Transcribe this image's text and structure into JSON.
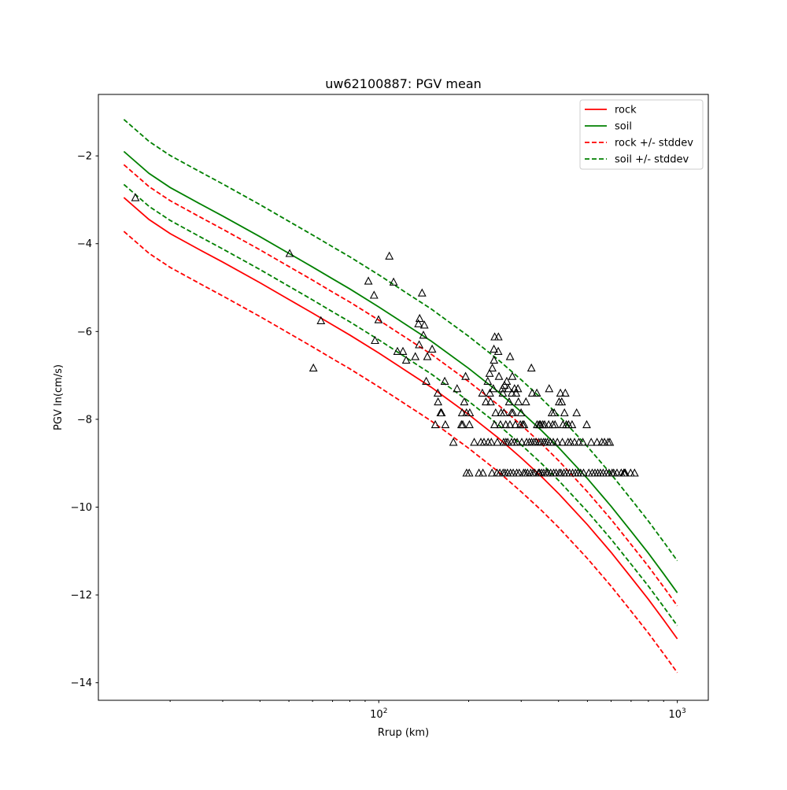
{
  "chart_data": {
    "type": "scatter",
    "title": "uw62100887: PGV mean",
    "xlabel": "Rrup (km)",
    "ylabel": "PGV ln(cm/s)",
    "xscale": "log",
    "xlim": [
      11.5,
      1270
    ],
    "ylim": [
      -14.4,
      -0.6
    ],
    "x_major_ticks": [
      {
        "value": 100,
        "base": "10",
        "exp": "2"
      },
      {
        "value": 1000,
        "base": "10",
        "exp": "3"
      }
    ],
    "y_ticks": [
      -2,
      -4,
      -6,
      -8,
      -10,
      -12,
      -14
    ],
    "y_tick_labels": [
      "−2",
      "−4",
      "−6",
      "−8",
      "−10",
      "−12",
      "−14"
    ],
    "grid": false,
    "legend_position": "top-right",
    "series": [
      {
        "name": "rock",
        "color": "#ff0000",
        "dash": "solid",
        "x": [
          14,
          17,
          20,
          25,
          30,
          40,
          50,
          60,
          70,
          80,
          100,
          120,
          150,
          200,
          250,
          300,
          350,
          400,
          500,
          600,
          700,
          800,
          900,
          1000
        ],
        "y": [
          -2.95,
          -3.45,
          -3.77,
          -4.13,
          -4.42,
          -4.89,
          -5.27,
          -5.58,
          -5.85,
          -6.08,
          -6.49,
          -6.84,
          -7.27,
          -7.89,
          -8.41,
          -8.88,
          -9.3,
          -9.69,
          -10.4,
          -11.03,
          -11.6,
          -12.1,
          -12.57,
          -13.0
        ]
      },
      {
        "name": "soil",
        "color": "#008000",
        "dash": "solid",
        "x": [
          14,
          17,
          20,
          25,
          30,
          40,
          50,
          60,
          70,
          80,
          100,
          120,
          150,
          200,
          250,
          300,
          350,
          400,
          500,
          600,
          700,
          800,
          900,
          1000
        ],
        "y": [
          -1.9,
          -2.4,
          -2.72,
          -3.08,
          -3.37,
          -3.84,
          -4.22,
          -4.53,
          -4.8,
          -5.03,
          -5.44,
          -5.79,
          -6.22,
          -6.84,
          -7.36,
          -7.83,
          -8.25,
          -8.64,
          -9.35,
          -9.98,
          -10.55,
          -11.05,
          -11.52,
          -11.95
        ]
      },
      {
        "name": "rock +/- stddev",
        "color": "#ff0000",
        "dash": "dashed",
        "x": [
          14,
          17,
          20,
          25,
          30,
          40,
          50,
          60,
          70,
          80,
          100,
          120,
          150,
          200,
          250,
          300,
          350,
          400,
          500,
          600,
          700,
          800,
          900,
          1000
        ],
        "y": [
          -2.2,
          -2.7,
          -3.02,
          -3.38,
          -3.67,
          -4.14,
          -4.52,
          -4.83,
          -5.1,
          -5.33,
          -5.74,
          -6.09,
          -6.52,
          -7.14,
          -7.66,
          -8.13,
          -8.55,
          -8.94,
          -9.65,
          -10.28,
          -10.85,
          -11.35,
          -11.82,
          -12.25
        ]
      },
      {
        "name": "",
        "color": "#ff0000",
        "dash": "dashed",
        "x": [
          14,
          17,
          20,
          25,
          30,
          40,
          50,
          60,
          70,
          80,
          100,
          120,
          150,
          200,
          250,
          300,
          350,
          400,
          500,
          600,
          700,
          800,
          900,
          1000
        ],
        "y": [
          -3.72,
          -4.22,
          -4.54,
          -4.9,
          -5.19,
          -5.66,
          -6.04,
          -6.35,
          -6.62,
          -6.85,
          -7.26,
          -7.61,
          -8.04,
          -8.66,
          -9.18,
          -9.65,
          -10.07,
          -10.46,
          -11.17,
          -11.8,
          -12.37,
          -12.87,
          -13.34,
          -13.77
        ]
      },
      {
        "name": "soil +/- stddev",
        "color": "#008000",
        "dash": "dashed",
        "x": [
          14,
          17,
          20,
          25,
          30,
          40,
          50,
          60,
          70,
          80,
          100,
          120,
          150,
          200,
          250,
          300,
          350,
          400,
          500,
          600,
          700,
          800,
          900,
          1000
        ],
        "y": [
          -1.17,
          -1.67,
          -1.99,
          -2.35,
          -2.64,
          -3.11,
          -3.49,
          -3.8,
          -4.07,
          -4.3,
          -4.71,
          -5.06,
          -5.49,
          -6.11,
          -6.63,
          -7.1,
          -7.52,
          -7.91,
          -8.62,
          -9.25,
          -9.82,
          -10.32,
          -10.79,
          -11.22
        ]
      },
      {
        "name": "",
        "color": "#008000",
        "dash": "dashed",
        "x": [
          14,
          17,
          20,
          25,
          30,
          40,
          50,
          60,
          70,
          80,
          100,
          120,
          150,
          200,
          250,
          300,
          350,
          400,
          500,
          600,
          700,
          800,
          900,
          1000
        ],
        "y": [
          -2.65,
          -3.15,
          -3.47,
          -3.83,
          -4.12,
          -4.59,
          -4.97,
          -5.28,
          -5.55,
          -5.78,
          -6.19,
          -6.54,
          -6.97,
          -7.59,
          -8.11,
          -8.58,
          -9.0,
          -9.39,
          -10.1,
          -10.73,
          -11.3,
          -11.8,
          -12.27,
          -12.7
        ]
      }
    ],
    "observations": {
      "marker": "triangle-open",
      "color": "#000000",
      "points": [
        [
          15.3,
          -2.95
        ],
        [
          50.3,
          -4.22
        ],
        [
          60.4,
          -6.83
        ],
        [
          64,
          -5.75
        ],
        [
          92.3,
          -4.85
        ],
        [
          96.4,
          -5.17
        ],
        [
          97.1,
          -6.2
        ],
        [
          99.8,
          -5.73
        ],
        [
          108.5,
          -4.28
        ],
        [
          112.1,
          -4.87
        ],
        [
          115.5,
          -6.45
        ],
        [
          120.5,
          -6.45
        ],
        [
          123.5,
          -6.65
        ],
        [
          132.5,
          -6.57
        ],
        [
          135.8,
          -5.82
        ],
        [
          136.5,
          -6.3
        ],
        [
          137,
          -5.7
        ],
        [
          139.6,
          -5.12
        ],
        [
          141.1,
          -6.08
        ],
        [
          142.1,
          -5.85
        ],
        [
          144.2,
          -7.13
        ],
        [
          145.4,
          -6.57
        ],
        [
          150.9,
          -6.4
        ],
        [
          154.6,
          -8.12
        ],
        [
          157.7,
          -7.4
        ],
        [
          157.9,
          -7.6
        ],
        [
          161.1,
          -7.85
        ],
        [
          162.2,
          -7.85
        ],
        [
          166.3,
          -7.13
        ],
        [
          167.1,
          -8.12
        ],
        [
          177.8,
          -8.52
        ],
        [
          182.9,
          -7.3
        ],
        [
          189.2,
          -8.12
        ],
        [
          190.2,
          -7.85
        ],
        [
          191.1,
          -8.12
        ],
        [
          193.3,
          -7.6
        ],
        [
          195.3,
          -7.02
        ],
        [
          196.6,
          -7.85
        ],
        [
          196.9,
          -9.22
        ],
        [
          200.9,
          -9.22
        ],
        [
          201.2,
          -8.12
        ],
        [
          201.7,
          -7.85
        ],
        [
          208.8,
          -8.52
        ],
        [
          216.6,
          -9.22
        ],
        [
          219.8,
          -8.52
        ],
        [
          222.3,
          -7.4
        ],
        [
          223.3,
          -9.22
        ],
        [
          225.2,
          -8.52
        ],
        [
          228.5,
          -7.6
        ],
        [
          231.8,
          -7.13
        ],
        [
          232.3,
          -8.52
        ],
        [
          235.1,
          -6.95
        ],
        [
          235.6,
          -7.4
        ],
        [
          236.9,
          -7.6
        ],
        [
          238.2,
          -8.52
        ],
        [
          239.6,
          -9.22
        ],
        [
          240.1,
          -6.83
        ],
        [
          241.8,
          -7.3
        ],
        [
          243,
          -6.4
        ],
        [
          243.2,
          -6.65
        ],
        [
          244.1,
          -8.12
        ],
        [
          244.5,
          -6.12
        ],
        [
          246.3,
          -7.85
        ],
        [
          248.8,
          -9.22
        ],
        [
          249.6,
          -8.52
        ],
        [
          251.3,
          -6.45
        ],
        [
          251.6,
          -6.12
        ],
        [
          252.7,
          -7.02
        ],
        [
          254.4,
          -9.22
        ],
        [
          255.6,
          -8.12
        ],
        [
          256.8,
          -7.85
        ],
        [
          259.5,
          -7.3
        ],
        [
          260.3,
          -7.4
        ],
        [
          260.9,
          -9.22
        ],
        [
          262.1,
          -8.52
        ],
        [
          262.5,
          -7.85
        ],
        [
          263.7,
          -7.22
        ],
        [
          264.7,
          -9.22
        ],
        [
          266.3,
          -8.12
        ],
        [
          266.6,
          -8.52
        ],
        [
          268.4,
          -7.13
        ],
        [
          269.8,
          -9.22
        ],
        [
          270.4,
          -8.52
        ],
        [
          271.6,
          -7.3
        ],
        [
          273.4,
          -7.6
        ],
        [
          275.1,
          -8.12
        ],
        [
          275.3,
          -6.57
        ],
        [
          276.3,
          -9.22
        ],
        [
          278.3,
          -7.85
        ],
        [
          278.4,
          -8.52
        ],
        [
          279.2,
          -7.4
        ],
        [
          280.2,
          -7.02
        ],
        [
          281.5,
          -7.85
        ],
        [
          282.1,
          -9.22
        ],
        [
          284.2,
          -8.52
        ],
        [
          284.9,
          -7.3
        ],
        [
          286.9,
          -8.12
        ],
        [
          288.5,
          -7.4
        ],
        [
          289.9,
          -9.22
        ],
        [
          290.7,
          -8.52
        ],
        [
          292.4,
          -7.3
        ],
        [
          293.5,
          -7.6
        ],
        [
          295.5,
          -9.22
        ],
        [
          297.8,
          -8.12
        ],
        [
          299.6,
          -7.85
        ],
        [
          301.3,
          -8.52
        ],
        [
          303.4,
          -8.12
        ],
        [
          305.5,
          -9.22
        ],
        [
          306.6,
          -8.12
        ],
        [
          309.4,
          -9.22
        ],
        [
          311.1,
          -7.6
        ],
        [
          312.7,
          -8.52
        ],
        [
          314.9,
          -9.22
        ],
        [
          319.3,
          -8.52
        ],
        [
          322.7,
          -9.22
        ],
        [
          324.5,
          -6.83
        ],
        [
          325.1,
          -8.52
        ],
        [
          326.4,
          -7.4
        ],
        [
          328.6,
          -9.22
        ],
        [
          331,
          -8.52
        ],
        [
          333.3,
          -9.22
        ],
        [
          336,
          -8.52
        ],
        [
          338.4,
          -7.4
        ],
        [
          339.2,
          -8.12
        ],
        [
          342.6,
          -9.22
        ],
        [
          343.7,
          -8.52
        ],
        [
          344.7,
          -8.12
        ],
        [
          345.3,
          -9.22
        ],
        [
          348.2,
          -8.12
        ],
        [
          349.7,
          -8.52
        ],
        [
          351.1,
          -9.22
        ],
        [
          354.4,
          -8.12
        ],
        [
          356.1,
          -8.52
        ],
        [
          357,
          -9.22
        ],
        [
          359.4,
          -8.12
        ],
        [
          361.2,
          -8.52
        ],
        [
          363.9,
          -9.22
        ],
        [
          367.2,
          -8.52
        ],
        [
          368.4,
          -9.22
        ],
        [
          370.8,
          -8.12
        ],
        [
          372.1,
          -7.3
        ],
        [
          375.6,
          -8.52
        ],
        [
          376.5,
          -9.22
        ],
        [
          380.1,
          -7.85
        ],
        [
          382.5,
          -8.12
        ],
        [
          384,
          -8.52
        ],
        [
          385.3,
          -9.22
        ],
        [
          386.9,
          -7.85
        ],
        [
          389.2,
          -8.12
        ],
        [
          392.5,
          -9.22
        ],
        [
          396.4,
          -8.52
        ],
        [
          401.7,
          -7.6
        ],
        [
          402.2,
          -9.22
        ],
        [
          406,
          -7.4
        ],
        [
          407.4,
          -9.22
        ],
        [
          410.2,
          -7.6
        ],
        [
          412.1,
          -8.52
        ],
        [
          413.9,
          -8.12
        ],
        [
          417.2,
          -9.22
        ],
        [
          418.8,
          -7.85
        ],
        [
          421.5,
          -7.4
        ],
        [
          424.8,
          -8.12
        ],
        [
          426.2,
          -9.22
        ],
        [
          430.2,
          -8.52
        ],
        [
          432.1,
          -8.12
        ],
        [
          435.6,
          -9.22
        ],
        [
          438.6,
          -8.52
        ],
        [
          444,
          -8.12
        ],
        [
          446.1,
          -9.22
        ],
        [
          452.6,
          -8.52
        ],
        [
          455.7,
          -9.22
        ],
        [
          460,
          -7.85
        ],
        [
          464.6,
          -9.22
        ],
        [
          467.8,
          -8.52
        ],
        [
          474.4,
          -9.22
        ],
        [
          482.6,
          -8.52
        ],
        [
          485.1,
          -9.22
        ],
        [
          497.3,
          -8.12
        ],
        [
          505.5,
          -9.22
        ],
        [
          514.6,
          -8.52
        ],
        [
          518.7,
          -9.22
        ],
        [
          529.8,
          -9.22
        ],
        [
          538.4,
          -8.52
        ],
        [
          541.1,
          -9.22
        ],
        [
          552.5,
          -9.22
        ],
        [
          558.5,
          -8.52
        ],
        [
          564.3,
          -9.22
        ],
        [
          570.2,
          -8.52
        ],
        [
          578.4,
          -9.22
        ],
        [
          586.1,
          -8.52
        ],
        [
          590.6,
          -9.22
        ],
        [
          594.2,
          -8.52
        ],
        [
          605,
          -9.22
        ],
        [
          612.3,
          -9.22
        ],
        [
          628.1,
          -9.22
        ],
        [
          648.6,
          -9.22
        ],
        [
          662.2,
          -9.22
        ],
        [
          666.8,
          -9.22
        ],
        [
          669.4,
          -9.22
        ],
        [
          697.6,
          -9.22
        ],
        [
          719.3,
          -9.22
        ]
      ]
    }
  }
}
